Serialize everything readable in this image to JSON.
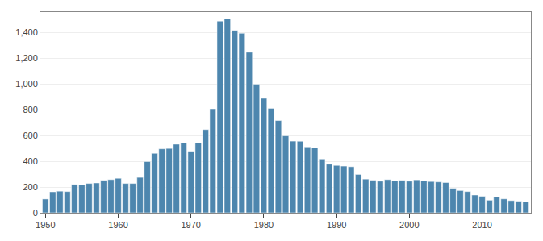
{
  "chart_data": {
    "type": "bar",
    "x": [
      1950,
      1951,
      1952,
      1953,
      1954,
      1955,
      1956,
      1957,
      1958,
      1959,
      1960,
      1961,
      1962,
      1963,
      1964,
      1965,
      1966,
      1967,
      1968,
      1969,
      1970,
      1971,
      1972,
      1973,
      1974,
      1975,
      1976,
      1977,
      1978,
      1979,
      1980,
      1981,
      1982,
      1983,
      1984,
      1985,
      1986,
      1987,
      1988,
      1989,
      1990,
      1991,
      1992,
      1993,
      1994,
      1995,
      1996,
      1997,
      1998,
      1999,
      2000,
      2001,
      2002,
      2003,
      2004,
      2005,
      2006,
      2007,
      2008,
      2009,
      2010,
      2011,
      2012,
      2013,
      2014,
      2015,
      2016
    ],
    "values": [
      107,
      163,
      168,
      165,
      220,
      218,
      228,
      232,
      252,
      258,
      268,
      228,
      228,
      275,
      398,
      462,
      497,
      500,
      533,
      542,
      478,
      542,
      647,
      808,
      1490,
      1510,
      1418,
      1395,
      1248,
      1000,
      890,
      812,
      717,
      598,
      557,
      556,
      512,
      507,
      418,
      378,
      368,
      363,
      358,
      298,
      262,
      253,
      246,
      258,
      248,
      252,
      246,
      256,
      250,
      243,
      240,
      235,
      190,
      173,
      165,
      138,
      128,
      98,
      122,
      108,
      95,
      90,
      85
    ],
    "color": "#4d86ae",
    "xlim": [
      1949.3,
      2016.7
    ],
    "xticks": [
      1950,
      1960,
      1970,
      1980,
      1990,
      2000,
      2010
    ],
    "ylim": [
      0,
      1560
    ],
    "yticks": [
      0,
      200,
      400,
      600,
      800,
      {
        "value": 1000,
        "label": "1,000"
      },
      {
        "value": 1200,
        "label": "1,200"
      },
      {
        "value": 1400,
        "label": "1,400"
      }
    ],
    "grid": true
  }
}
